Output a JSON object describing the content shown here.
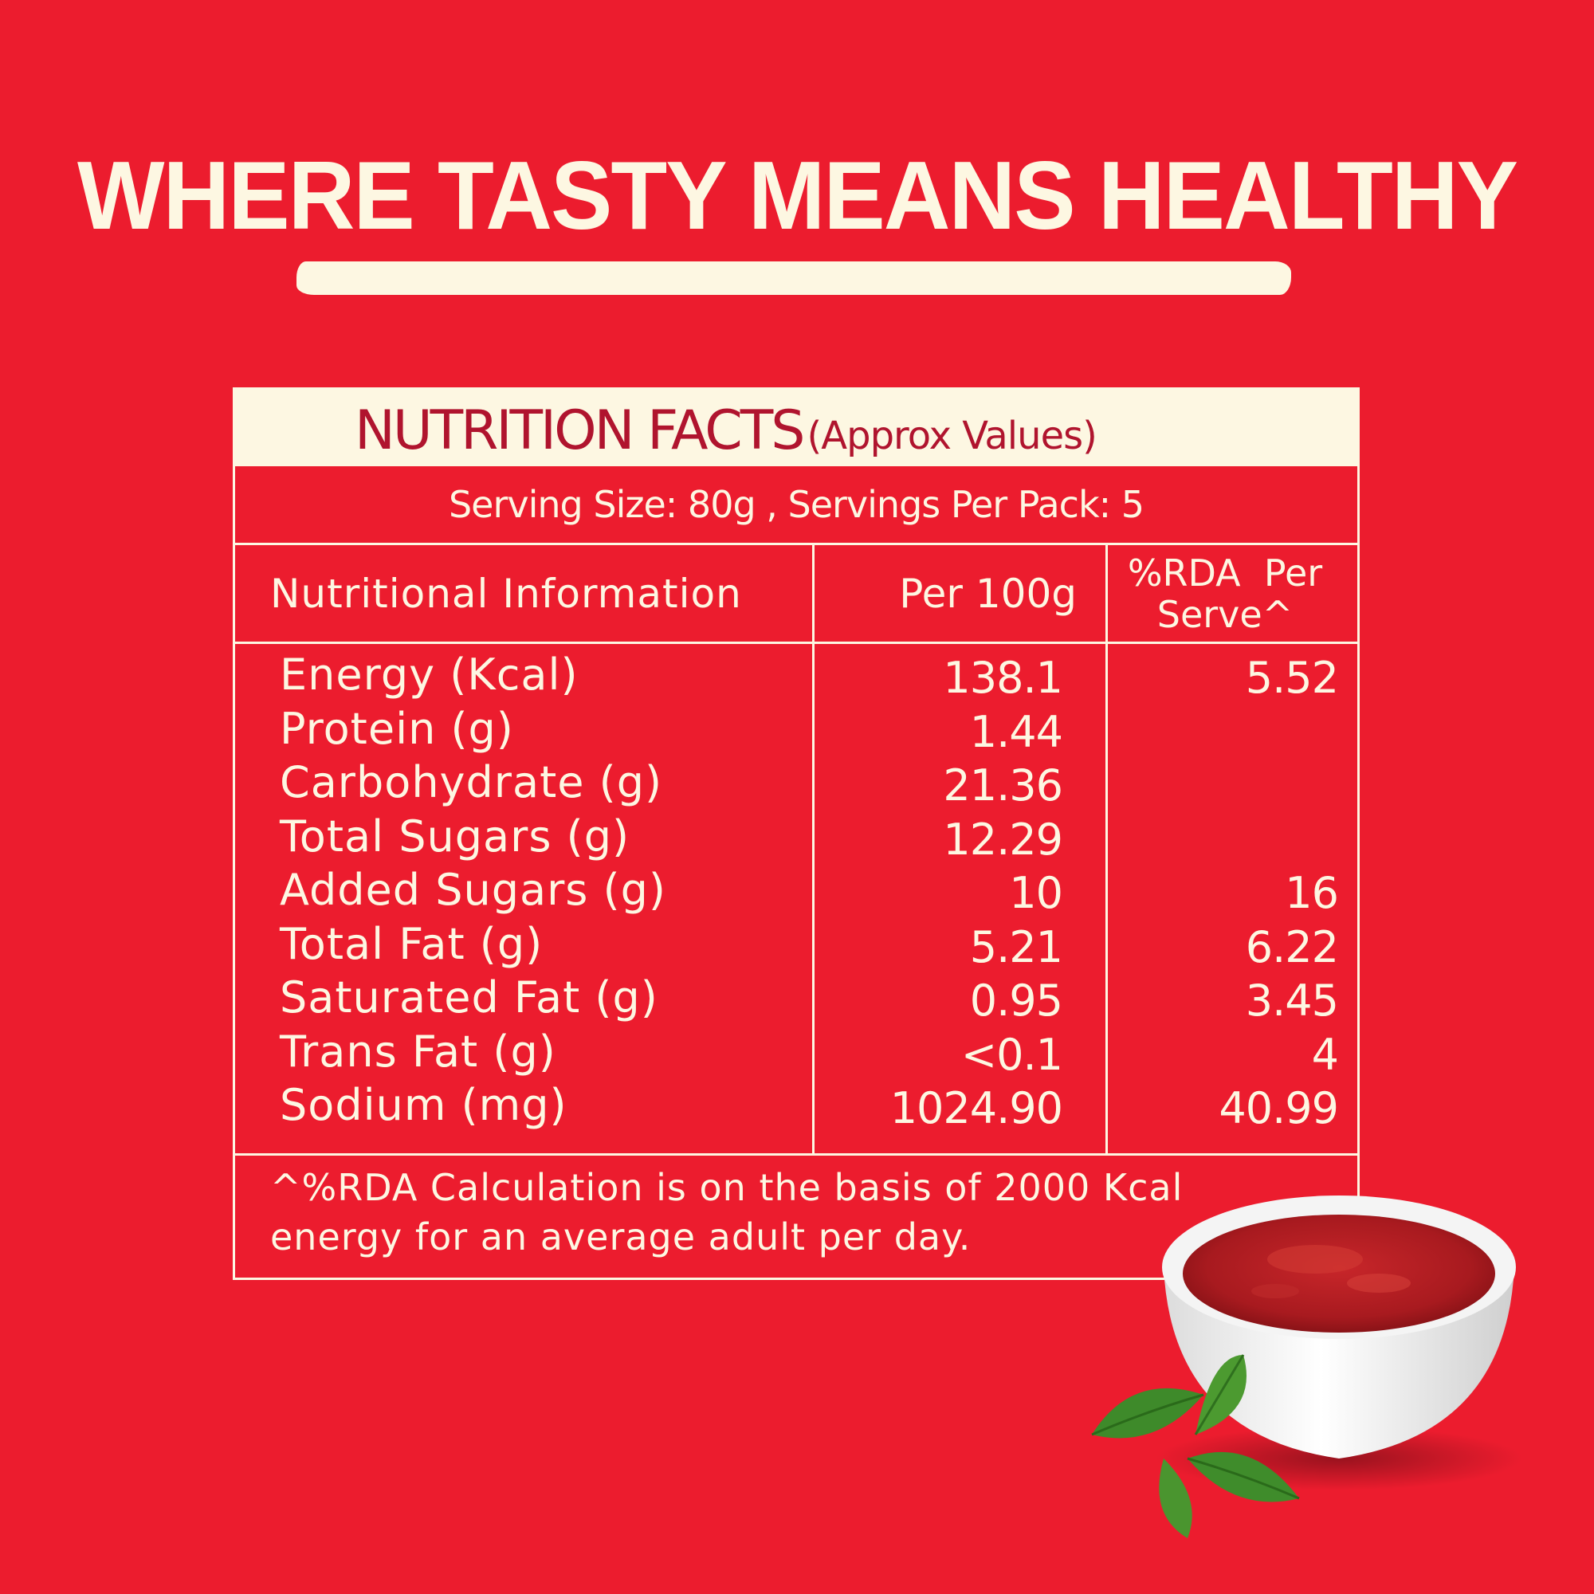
{
  "headline": "WHERE TASTY MEANS HEALTHY",
  "panel": {
    "title": "NUTRITION FACTS",
    "title_note": "(Approx Values)",
    "serving": "Serving Size: 80g , Servings Per Pack: 5",
    "headers": {
      "col1": "Nutritional Information",
      "col2": "Per 100g",
      "col3_line1": "%RDA  Per",
      "col3_line2": "Serve^"
    },
    "rows": [
      {
        "name": "Energy (Kcal)",
        "per100g": "138.1",
        "rda": "5.52"
      },
      {
        "name": "Protein (g)",
        "per100g": "1.44",
        "rda": ""
      },
      {
        "name": "Carbohydrate (g)",
        "per100g": "21.36",
        "rda": ""
      },
      {
        "name": "Total Sugars (g)",
        "per100g": "12.29",
        "rda": ""
      },
      {
        "name": "Added Sugars (g)",
        "per100g": "10",
        "rda": "16"
      },
      {
        "name": "Total Fat (g)",
        "per100g": "5.21",
        "rda": "6.22"
      },
      {
        "name": "Saturated Fat (g)",
        "per100g": "0.95",
        "rda": "3.45"
      },
      {
        "name": "Trans Fat (g)",
        "per100g": "<0.1",
        "rda": "4"
      },
      {
        "name": "Sodium (mg)",
        "per100g": "1024.90",
        "rda": "40.99"
      }
    ],
    "footnote_line1": "^%RDA Calculation is on the basis of 2000 Kcal",
    "footnote_line2": "energy for an average adult per day."
  },
  "colors": {
    "background": "#ec1c2e",
    "cream": "#fdf7e2",
    "title_red": "#b0142e"
  },
  "image": {
    "subject": "bowl-of-tomato-sauce-with-basil-icon"
  }
}
